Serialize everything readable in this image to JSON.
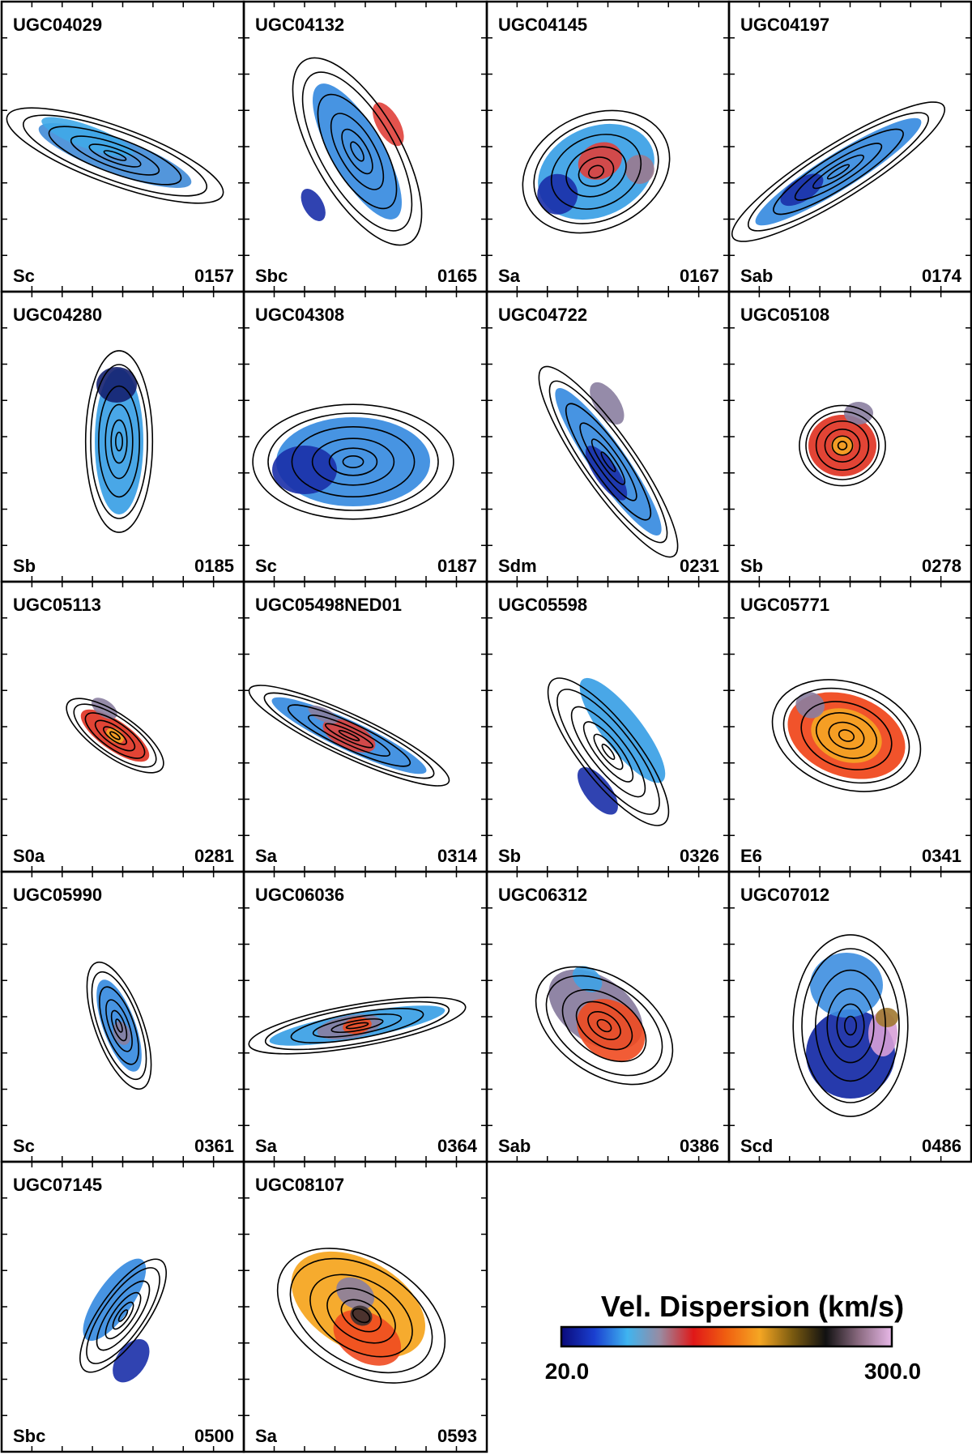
{
  "figure": {
    "panels": [
      {
        "name": "UGC04029",
        "type": "Sc",
        "id": "0157",
        "blobs": [
          {
            "color": "#4a90d9"
          },
          {
            "color": "#3fa9e8"
          }
        ]
      },
      {
        "name": "UGC04132",
        "type": "Sbc",
        "id": "0165",
        "blobs": [
          {
            "color": "#3d8ee0"
          },
          {
            "color": "#e0403a"
          },
          {
            "color": "#1a2fa8"
          }
        ]
      },
      {
        "name": "UGC04145",
        "type": "Sa",
        "id": "0167",
        "blobs": [
          {
            "color": "#3fa2e6"
          },
          {
            "color": "#1a2fa8"
          },
          {
            "color": "#e0403a"
          },
          {
            "color": "#9b7a8e"
          }
        ]
      },
      {
        "name": "UGC04197",
        "type": "Sab",
        "id": "0174",
        "blobs": [
          {
            "color": "#3d8ee0"
          },
          {
            "color": "#1a2fa8"
          }
        ]
      },
      {
        "name": "UGC04280",
        "type": "Sb",
        "id": "0185",
        "blobs": [
          {
            "color": "#3fa2e6"
          },
          {
            "color": "#14206f"
          }
        ]
      },
      {
        "name": "UGC04308",
        "type": "Sc",
        "id": "0187",
        "blobs": [
          {
            "color": "#3d8ee0"
          },
          {
            "color": "#1a2fa8"
          }
        ]
      },
      {
        "name": "UGC04722",
        "type": "Sdm",
        "id": "0231",
        "blobs": [
          {
            "color": "#3d8ee0"
          },
          {
            "color": "#8a7ea0"
          },
          {
            "color": "#1a2fa8"
          }
        ]
      },
      {
        "name": "UGC05108",
        "type": "Sb",
        "id": "0278",
        "blobs": [
          {
            "color": "#e03a2a"
          },
          {
            "color": "#f5a623"
          },
          {
            "color": "#8a7ea0"
          }
        ]
      },
      {
        "name": "UGC05113",
        "type": "S0a",
        "id": "0281",
        "blobs": [
          {
            "color": "#e03a2a"
          },
          {
            "color": "#8a7ea0"
          },
          {
            "color": "#f5a623"
          }
        ]
      },
      {
        "name": "UGC05498NED01",
        "type": "Sa",
        "id": "0314",
        "blobs": [
          {
            "color": "#3d8ee0"
          },
          {
            "color": "#e0403a"
          },
          {
            "color": "#8a7ea0"
          }
        ]
      },
      {
        "name": "UGC05598",
        "type": "Sb",
        "id": "0326",
        "blobs": [
          {
            "color": "#3fa2e6"
          },
          {
            "color": "#1a2fa8"
          }
        ]
      },
      {
        "name": "UGC05771",
        "type": "E6",
        "id": "0341",
        "blobs": [
          {
            "color": "#f04a20"
          },
          {
            "color": "#f5a623"
          },
          {
            "color": "#8a7ea0"
          }
        ]
      },
      {
        "name": "UGC05990",
        "type": "Sc",
        "id": "0361",
        "blobs": [
          {
            "color": "#3d8ee0"
          },
          {
            "color": "#8a7ea0"
          }
        ]
      },
      {
        "name": "UGC06036",
        "type": "Sa",
        "id": "0364",
        "blobs": [
          {
            "color": "#3fa2e6"
          },
          {
            "color": "#8a7ea0"
          },
          {
            "color": "#f04a20"
          }
        ]
      },
      {
        "name": "UGC06312",
        "type": "Sab",
        "id": "0386",
        "blobs": [
          {
            "color": "#8a7ea0"
          },
          {
            "color": "#f04a20"
          },
          {
            "color": "#3fa2e6"
          }
        ]
      },
      {
        "name": "UGC07012",
        "type": "Scd",
        "id": "0486",
        "blobs": [
          {
            "color": "#1a2fa8"
          },
          {
            "color": "#3d8ee0"
          },
          {
            "color": "#d8a0d8"
          },
          {
            "color": "#a07830"
          }
        ]
      },
      {
        "name": "UGC07145",
        "type": "Sbc",
        "id": "0500",
        "blobs": [
          {
            "color": "#3d8ee0"
          },
          {
            "color": "#1a2fa8"
          }
        ]
      },
      {
        "name": "UGC08107",
        "type": "Sa",
        "id": "0593",
        "blobs": [
          {
            "color": "#f5a623"
          },
          {
            "color": "#f04a20"
          },
          {
            "color": "#8a7ea0"
          },
          {
            "color": "#3a3030"
          }
        ]
      }
    ],
    "colorbar": {
      "title": "Vel. Dispersion (km/s)",
      "min_label": "20.0",
      "max_label": "300.0",
      "stops": [
        "#0a0a7a",
        "#1a3fd0",
        "#3fb4f0",
        "#9a8aa0",
        "#e01818",
        "#f06010",
        "#f5a623",
        "#7a5a10",
        "#111111",
        "#8a6a80",
        "#e8b8e8"
      ]
    }
  }
}
